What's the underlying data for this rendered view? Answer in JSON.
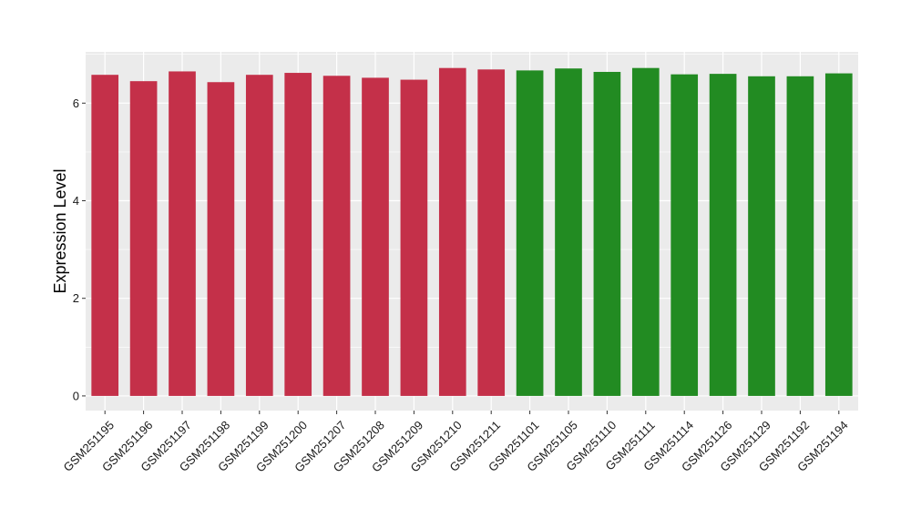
{
  "chart_data": {
    "type": "bar",
    "title": "",
    "xlabel": "",
    "ylabel": "Expression Level",
    "ylim": [
      -0.3,
      7.05
    ],
    "yticks": [
      0,
      2,
      4,
      6
    ],
    "grid": true,
    "legend": "none",
    "colors": {
      "group1": "#c43049",
      "group2": "#228b22",
      "panel": "#ebebeb",
      "gridline": "#ffffff"
    },
    "categories": [
      "GSM251195",
      "GSM251196",
      "GSM251197",
      "GSM251198",
      "GSM251199",
      "GSM251200",
      "GSM251207",
      "GSM251208",
      "GSM251209",
      "GSM251210",
      "GSM251211",
      "GSM251101",
      "GSM251105",
      "GSM251110",
      "GSM251111",
      "GSM251114",
      "GSM251126",
      "GSM251129",
      "GSM251192",
      "GSM251194"
    ],
    "values": [
      6.58,
      6.45,
      6.65,
      6.43,
      6.58,
      6.62,
      6.56,
      6.52,
      6.48,
      6.72,
      6.69,
      6.67,
      6.71,
      6.64,
      6.72,
      6.59,
      6.6,
      6.55,
      6.55,
      6.61
    ],
    "groups": [
      1,
      1,
      1,
      1,
      1,
      1,
      1,
      1,
      1,
      1,
      1,
      2,
      2,
      2,
      2,
      2,
      2,
      2,
      2,
      2
    ]
  }
}
